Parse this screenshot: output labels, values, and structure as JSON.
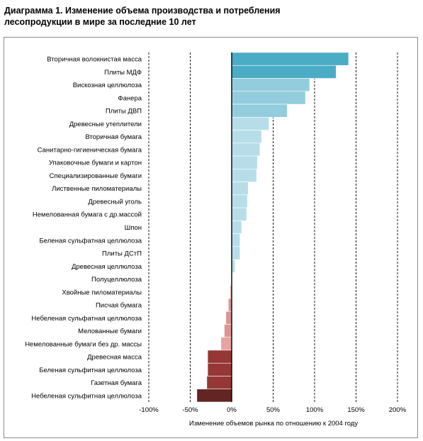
{
  "title": "Диаграмма 1. Изменение объема производства и потребления лесопродукции в мире за последние 10 лет",
  "chart_data": {
    "type": "bar",
    "orientation": "horizontal",
    "title": "Диаграмма 1. Изменение объема производства и потребления лесопродукции в мире за последние 10 лет",
    "xlabel": "Изменение объемов рынка по отношению к 2004 году",
    "ylabel": "",
    "xlim": [
      -100,
      200
    ],
    "xticks": [
      -100,
      -50,
      0,
      50,
      100,
      150,
      200
    ],
    "xtick_labels": [
      "-100%",
      "-50%",
      "0%",
      "50%",
      "100%",
      "150%",
      "200%"
    ],
    "grid": "vertical dashed",
    "legend": "none",
    "categories": [
      "Вторичная волокнистая масса",
      "Плиты МДФ",
      "Вискозная целлюлоза",
      "Фанера",
      "Плиты ДВП",
      "Древесные утеплители",
      "Вторичная бумага",
      "Санитарно-гигиеническая бумага",
      "Упаковочные бумаги и картон",
      "Специализированные бумаги",
      "Лиственные пиломатериалы",
      "Древесный уголь",
      "Немелованная бумага с др.массой",
      "Шпон",
      "Беленая сульфатная целлюлоза",
      "Плиты ДСтП",
      "Древесная целлюлоза",
      "Полуцеллюлоза",
      "Хвойные пиломатериалы",
      "Писчая бумага",
      "Небеленая сульфатная целлюлоза",
      "Мелованные бумаги",
      "Немелованные бумаги без др. массы",
      "Древесная масса",
      "Беленая сульфитная целлюлоза",
      "Газетная бумага",
      "Небеленая сульфитная целлюлоза"
    ],
    "values": [
      141,
      126,
      94,
      89,
      67,
      45,
      36,
      34,
      31,
      30,
      20,
      19,
      18,
      12,
      10,
      10,
      4,
      0,
      -2,
      -4,
      -7,
      -9,
      -13,
      -29,
      -29,
      -30,
      -42
    ],
    "colors": [
      "#4bacc6",
      "#4bacc6",
      "#93cddd",
      "#93cddd",
      "#93cddd",
      "#b7dee8",
      "#b7dee8",
      "#b7dee8",
      "#b7dee8",
      "#b7dee8",
      "#b7dee8",
      "#b7dee8",
      "#b7dee8",
      "#b7dee8",
      "#b7dee8",
      "#b7dee8",
      "#b7dee8",
      "#b7dee8",
      "#e6b9b8",
      "#d99694",
      "#d99694",
      "#d99694",
      "#e6a3a1",
      "#953735",
      "#953735",
      "#953735",
      "#632523"
    ]
  }
}
